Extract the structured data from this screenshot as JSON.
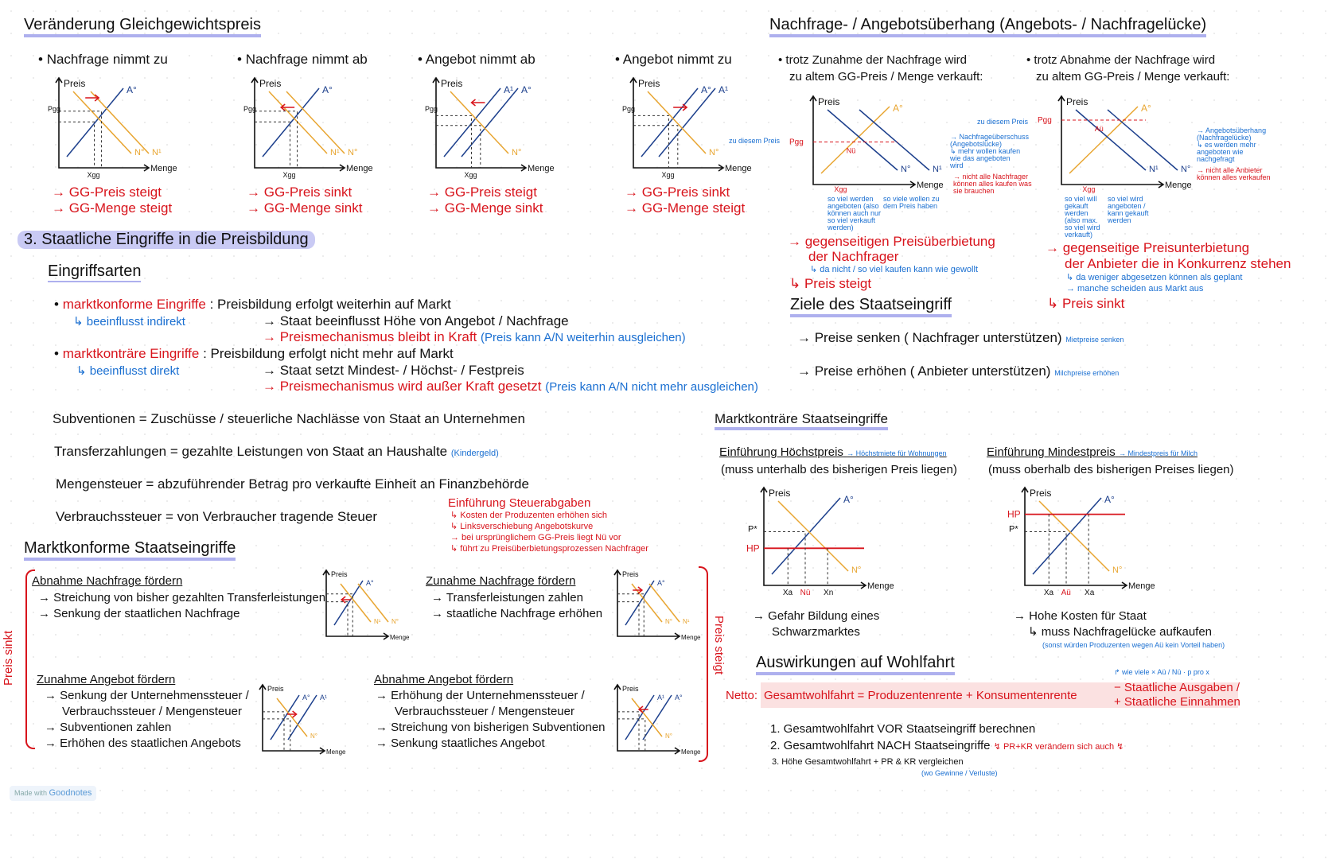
{
  "left": {
    "title": "Veränderung Gleichgewichtspreis",
    "cases": [
      {
        "label": "Nachfrage nimmt zu",
        "r1": "→ GG-Preis steigt",
        "r2": "→ GG-Menge steigt"
      },
      {
        "label": "Nachfrage nimmt ab",
        "r1": "→ GG-Preis sinkt",
        "r2": "→ GG-Menge sinkt"
      },
      {
        "label": "Angebot nimmt ab",
        "r1": "→ GG-Preis steigt",
        "r2": "→ GG-Menge sinkt"
      },
      {
        "label": "Angebot nimmt zu",
        "r1": "→ GG-Preis sinkt",
        "r2": "→ GG-Menge steigt"
      }
    ],
    "section3": "3.  Staatliche Eingriffe in die Preisbildung",
    "eingriffsarten": "Eingriffsarten",
    "konform": {
      "label": "marktkonforme Eingriffe",
      "sub": "↳ beeinflusst indirekt",
      "l1": ": Preisbildung erfolgt weiterhin auf Markt",
      "l2": "→ Staat beeinflusst Höhe von Angebot / Nachfrage",
      "l3": "→ Preismechanismus bleibt in Kraft",
      "l3note": "(Preis kann A/N weiterhin ausgleichen)"
    },
    "kontraer": {
      "label": "marktkonträre Eingriffe",
      "sub": "↳ beeinflusst direkt",
      "l1": ": Preisbildung erfolgt nicht mehr auf Markt",
      "l2": "→ Staat setzt Mindest- / Höchst- / Festpreis",
      "l3": "→ Preismechanismus wird außer Kraft gesetzt",
      "l3note": "(Preis kann A/N nicht mehr ausgleichen)"
    },
    "defs": [
      {
        "text": "Subventionen = Zuschüsse / steuerliche Nachlässe von Staat an Unternehmen",
        "note": ""
      },
      {
        "text": "Transferzahlungen = gezahlte Leistungen von Staat an Haushalte",
        "note": "(Kindergeld)"
      },
      {
        "text": "Mengensteuer = abzuführender Betrag pro verkaufte Einheit an Finanzbehörde",
        "note": ""
      },
      {
        "text": "Verbrauchssteuer = von Verbraucher tragende Steuer",
        "note": ""
      }
    ],
    "steuer": {
      "title": "Einführung Steuerabgaben",
      "lines": [
        "↳ Kosten der Produzenten erhöhen sich",
        "↳ Linksverschiebung Angebotskurve",
        "→ bei ursprünglichem GG-Preis liegt Nü vor",
        "↳ führt zu Preisüberbietungsprozessen Nachfrager"
      ]
    },
    "konformTitle": "Marktkonforme Staatseingriffe",
    "braceLeft": "Preis sinkt",
    "braceRight": "Preis steigt",
    "blocks": [
      {
        "title": "Abnahme Nachfrage fördern",
        "lines": [
          "→ Streichung von bisher gezahlten Transferleistungen",
          "→ Senkung der staatlichen Nachfrage"
        ]
      },
      {
        "title": "Zunahme Nachfrage fördern",
        "lines": [
          "→ Transferleistungen zahlen",
          "→ staatliche Nachfrage erhöhen"
        ]
      },
      {
        "title": "Zunahme Angebot fördern",
        "lines": [
          "→ Senkung der Unternehmenssteuer /",
          "Verbrauchssteuer / Mengensteuer",
          "→ Subventionen zahlen",
          "→ Erhöhen des staatlichen Angebots"
        ]
      },
      {
        "title": "Abnahme Angebot fördern",
        "lines": [
          "→ Erhöhung der Unternehmenssteuer /",
          "Verbrauchssteuer / Mengensteuer",
          "→ Streichung von bisherigen Subventionen",
          "→ Senkung staatliches Angebot"
        ]
      }
    ]
  },
  "graph": {
    "preis": "Preis",
    "menge": "Menge",
    "a0": "A°",
    "a1": "A¹",
    "n0": "N°",
    "n1": "N¹",
    "pgg": "Pgg",
    "xgg": "Xgg",
    "hp": "HP",
    "mp": "P*",
    "xa": "Xa",
    "xn": "Xn",
    "nu": "Nü",
    "au": "Aü"
  },
  "right": {
    "title": "Nachfrage- / Angebotsüberhang (Angebots- / Nachfragelücke)",
    "n": {
      "intro1": "• trotz Zunahme der Nachfrage wird",
      "intro2": "zu altem GG-Preis / Menge verkauft:",
      "price": "zu diesem Preis",
      "note": [
        "→ Nachfrageüberschuss",
        "(Angebotslücke)",
        "↳ mehr wollen kaufen",
        "wie das angeboten",
        "wird"
      ],
      "noteRed": [
        "→ nicht alle Nachfrager",
        "können alles kaufen was",
        "sie brauchen"
      ],
      "below1": [
        "so viel werden",
        "angeboten (also",
        "können auch nur",
        "so viel verkauft",
        "werden)"
      ],
      "below2": [
        "so viele wollen zu",
        "dem Preis haben"
      ],
      "r1": "→ gegenseitigen Preisüberbietung",
      "r2": "der Nachfrager",
      "r3": "↳ da nicht / so viel kaufen kann wie gewollt",
      "r4": "↳ Preis steigt"
    },
    "a": {
      "intro1": "• trotz Abnahme der Nachfrage wird",
      "intro2": "zu altem GG-Preis / Menge verkauft:",
      "price": "zu diesem Preis",
      "note": [
        "→ Angebotsüberhang",
        "(Nachfragelücke)",
        "↳ es werden mehr",
        "angeboten wie",
        "nachgefragt"
      ],
      "noteRed": [
        "→ nicht alle Anbieter",
        "können alles verkaufen"
      ],
      "below1": [
        "so viel will",
        "gekauft",
        "werden",
        "(also max.",
        "so viel wird",
        "verkauft)"
      ],
      "below2": [
        "so viel wird",
        "angeboten /",
        "kann gekauft",
        "werden"
      ],
      "r1": "→ gegenseitige Preisunterbietung",
      "r2": "der Anbieter die in Konkurrenz stehen",
      "r3": "↳ da weniger abgesetzen können als geplant",
      "r4": "→ manche scheiden aus Markt aus",
      "r5": "↳ Preis sinkt"
    },
    "ziele": {
      "title": "Ziele des Staatseingriff",
      "l1": "→ Preise senken ( Nachfrager unterstützen)",
      "n1": "Mietpreise senken",
      "l2": "→ Preise erhöhen ( Anbieter unterstützen)",
      "n2": "Milchpreise erhöhen"
    },
    "kontraerTitle": "Marktkonträre Staatseingriffe",
    "hoechst": {
      "title": "Einführung Höchstpreis",
      "note": "→ Höchstmiete für Wohnungen",
      "sub": "(muss unterhalb des bisherigen Preis liegen)",
      "r1": "→ Gefahr Bildung eines",
      "r2": "Schwarzmarktes"
    },
    "mindest": {
      "title": "Einführung Mindestpreis",
      "note": "→ Mindestpreis für Milch",
      "sub": "(muss oberhalb des bisherigen Preises liegen)",
      "r1": "→ Hohe Kosten für Staat",
      "r2": "↳ muss Nachfragelücke aufkaufen",
      "r3": "(sonst würden Produzenten wegen Aü kein Vorteil haben)"
    },
    "wohlfahrt": {
      "title": "Auswirkungen auf Wohlfahrt",
      "netto": "Netto:",
      "formula": "Gesamtwohlfahrt = Produzentenrente + Konsumentenrente",
      "minus": "− Staatliche Ausgaben /",
      "plus": "+ Staatliche Einnahmen",
      "note": "↱ wie viele × Aü / Nü · p pro x",
      "steps": [
        "1. Gesamtwohlfahrt VOR Staatseingriff berechnen",
        "2. Gesamtwohlfahrt NACH Staatseingriffe",
        "3. Höhe Gesamtwohlfahrt  +  PR & KR  vergleichen"
      ],
      "step2note": "↯ PR+KR verändern sich auch ↯",
      "step3note": "(wo Gewinne / Verluste)"
    }
  },
  "footer": {
    "made": "Made with",
    "brand": "Goodnotes"
  },
  "colors": {
    "red": "#d8141c",
    "blue": "#1a6fd1",
    "orange": "#e8a530",
    "navy": "#1c3f8c",
    "highlight": "#c9caf4"
  }
}
